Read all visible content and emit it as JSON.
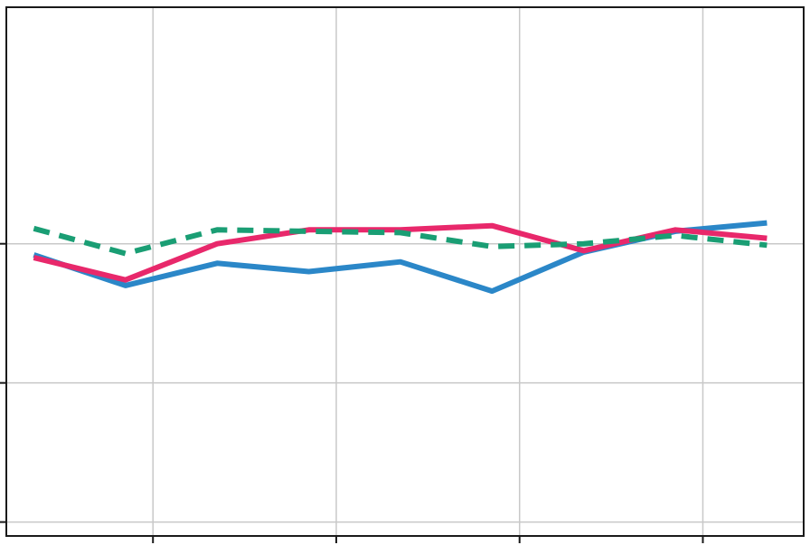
{
  "chart_data": {
    "type": "line",
    "title": "",
    "xlabel": "",
    "ylabel": "",
    "x": [
      0,
      1,
      2,
      3,
      4,
      5,
      6,
      7,
      8
    ],
    "xlim": [
      -0.3,
      8.4
    ],
    "ylim": [
      -2.0,
      1.8
    ],
    "x_ticks": [
      1.3,
      3.3,
      5.3,
      7.3
    ],
    "y_ticks": [
      -1.9,
      -0.9,
      0.1
    ],
    "grid": true,
    "legend": "none",
    "series": [
      {
        "color": "#2b87c8",
        "dash": "solid",
        "values": [
          0.02,
          -0.2,
          -0.04,
          -0.1,
          -0.03,
          -0.24,
          0.04,
          0.19,
          0.25
        ]
      },
      {
        "color": "#e8286b",
        "dash": "solid",
        "values": [
          0.0,
          -0.16,
          0.1,
          0.2,
          0.2,
          0.23,
          0.05,
          0.2,
          0.14
        ]
      },
      {
        "color": "#1a9e74",
        "dash": "dashed",
        "values": [
          0.21,
          0.03,
          0.2,
          0.19,
          0.18,
          0.08,
          0.1,
          0.16,
          0.09
        ]
      }
    ]
  }
}
